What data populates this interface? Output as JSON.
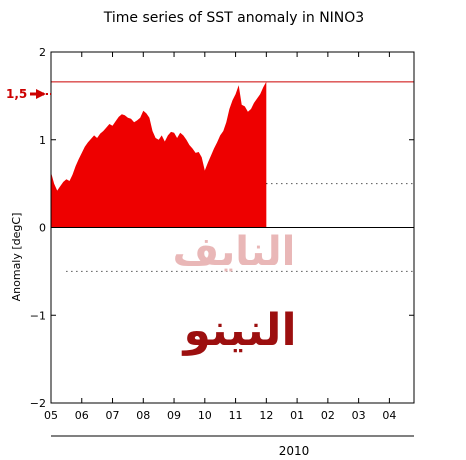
{
  "chart_data": {
    "type": "area",
    "title": "Time series of SST anomaly in NINO3",
    "ylabel": "Anomaly [degC]",
    "ylim": [
      -2,
      2
    ],
    "yticks": [
      2,
      1,
      0,
      -1,
      -2
    ],
    "ytick_labels": [
      "2",
      "1",
      "0",
      "−1",
      "−2"
    ],
    "xticks": [
      "05",
      "06",
      "07",
      "08",
      "09",
      "10",
      "11",
      "12",
      "01",
      "02",
      "03",
      "04"
    ],
    "year_label": "2010",
    "series": [
      {
        "color": "#ee0000",
        "x": [
          5.0,
          5.1,
          5.2,
          5.3,
          5.4,
          5.5,
          5.6,
          5.7,
          5.8,
          5.9,
          6.0,
          6.1,
          6.2,
          6.3,
          6.4,
          6.5,
          6.6,
          6.7,
          6.8,
          6.9,
          7.0,
          7.1,
          7.2,
          7.3,
          7.4,
          7.5,
          7.6,
          7.7,
          7.8,
          7.9,
          8.0,
          8.1,
          8.2,
          8.3,
          8.4,
          8.5,
          8.6,
          8.7,
          8.8,
          8.9,
          9.0,
          9.1,
          9.2,
          9.3,
          9.4,
          9.5,
          9.6,
          9.7,
          9.8,
          9.9,
          10.0,
          10.1,
          10.2,
          10.3,
          10.4,
          10.5,
          10.6,
          10.7,
          10.8,
          10.9,
          11.0,
          11.1,
          11.2,
          11.3,
          11.4,
          11.5,
          11.6,
          11.7,
          11.8,
          11.9,
          12.0
        ],
        "values": [
          0.63,
          0.5,
          0.42,
          0.47,
          0.52,
          0.55,
          0.53,
          0.6,
          0.7,
          0.78,
          0.85,
          0.92,
          0.97,
          1.01,
          1.05,
          1.02,
          1.07,
          1.1,
          1.14,
          1.18,
          1.16,
          1.21,
          1.26,
          1.29,
          1.28,
          1.25,
          1.24,
          1.2,
          1.22,
          1.25,
          1.33,
          1.3,
          1.25,
          1.1,
          1.02,
          1.0,
          1.05,
          0.98,
          1.05,
          1.09,
          1.08,
          1.02,
          1.08,
          1.05,
          1.0,
          0.94,
          0.9,
          0.85,
          0.86,
          0.8,
          0.65,
          0.74,
          0.82,
          0.9,
          0.97,
          1.05,
          1.1,
          1.2,
          1.35,
          1.45,
          1.52,
          1.62,
          1.4,
          1.38,
          1.32,
          1.35,
          1.42,
          1.47,
          1.52,
          1.6,
          1.66
        ]
      }
    ],
    "reference_line": {
      "value": 1.66,
      "color": "#cc0000"
    },
    "reference_label": "1,5",
    "dotted_lines": [
      {
        "value": 0.5,
        "from": 12,
        "to": 16.8
      },
      {
        "value": -0.5,
        "from": 5.5,
        "to": 16.8
      }
    ],
    "watermarks": [
      {
        "text": "النايف",
        "color": "#e9b7b7"
      },
      {
        "text": "النينو",
        "color": "#9c0f0f"
      }
    ]
  }
}
